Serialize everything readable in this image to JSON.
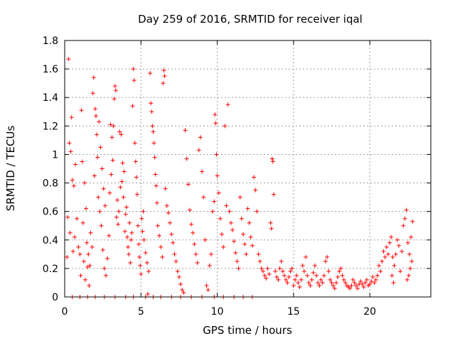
{
  "chart_data": {
    "type": "scatter",
    "title": "Day 259 of 2016, SRMTID for receiver iqal",
    "xlabel": "GPS time / hours",
    "ylabel": "SRMTID / TECUs",
    "xlim": [
      0,
      24
    ],
    "ylim": [
      0,
      1.8
    ],
    "xticks": [
      0,
      5,
      10,
      15,
      20
    ],
    "xtick_labels": [
      "0",
      "5",
      "10",
      "15",
      "20"
    ],
    "yticks": [
      0,
      0.2,
      0.4,
      0.6,
      0.8,
      1.0,
      1.2,
      1.4,
      1.6,
      1.8
    ],
    "ytick_labels": [
      "0",
      "0.2",
      "0.4",
      "0.6",
      "0.8",
      "1",
      "1.2",
      "1.4",
      "1.6",
      "1.8"
    ],
    "grid": true,
    "marker": "+",
    "color": "#ff0000",
    "series": [
      {
        "name": "SRMTID",
        "points": [
          [
            0.25,
            1.67
          ],
          [
            0.45,
            1.26
          ],
          [
            0.3,
            1.08
          ],
          [
            0.4,
            1.02
          ],
          [
            0.5,
            0.82
          ],
          [
            0.2,
            0.56
          ],
          [
            0.35,
            0.45
          ],
          [
            0.6,
            0.78
          ],
          [
            0.7,
            0.93
          ],
          [
            0.8,
            0.55
          ],
          [
            0.9,
            0.35
          ],
          [
            1.0,
            0.3
          ],
          [
            1.05,
            0.15
          ],
          [
            1.1,
            1.31
          ],
          [
            1.2,
            0.52
          ],
          [
            1.3,
            0.8
          ],
          [
            1.4,
            0.62
          ],
          [
            1.5,
            0.21
          ],
          [
            1.6,
            0.08
          ],
          [
            1.7,
            0.45
          ],
          [
            1.8,
            0.35
          ],
          [
            0.15,
            0.28
          ],
          [
            0.55,
            0.32
          ],
          [
            0.65,
            0.42
          ],
          [
            1.15,
            0.95
          ],
          [
            1.25,
            0.25
          ],
          [
            1.35,
            0.12
          ],
          [
            1.45,
            0.38
          ],
          [
            1.55,
            0.3
          ],
          [
            1.65,
            0.22
          ],
          [
            1.9,
            1.54
          ],
          [
            1.85,
            1.43
          ],
          [
            2.0,
            1.32
          ],
          [
            2.05,
            1.27
          ],
          [
            2.1,
            1.14
          ],
          [
            1.95,
            0.85
          ],
          [
            2.15,
            0.98
          ],
          [
            2.2,
            0.7
          ],
          [
            2.3,
            0.6
          ],
          [
            2.4,
            0.5
          ],
          [
            2.5,
            0.33
          ],
          [
            2.6,
            0.2
          ],
          [
            2.7,
            0.15
          ],
          [
            2.8,
            0.27
          ],
          [
            2.9,
            0.43
          ],
          [
            2.25,
            1.23
          ],
          [
            2.35,
            1.05
          ],
          [
            2.45,
            0.9
          ],
          [
            2.55,
            0.76
          ],
          [
            2.65,
            0.64
          ],
          [
            3.0,
            1.21
          ],
          [
            3.1,
            1.12
          ],
          [
            3.2,
            1.2
          ],
          [
            3.3,
            1.48
          ],
          [
            3.35,
            1.45
          ],
          [
            3.25,
            1.39
          ],
          [
            3.15,
            0.96
          ],
          [
            3.05,
            0.86
          ],
          [
            2.95,
            0.73
          ],
          [
            3.4,
            0.56
          ],
          [
            3.5,
            0.51
          ],
          [
            3.6,
            1.16
          ],
          [
            3.7,
            1.14
          ],
          [
            3.8,
            0.94
          ],
          [
            3.9,
            0.88
          ],
          [
            4.0,
            0.58
          ],
          [
            4.1,
            0.42
          ],
          [
            4.15,
            0.35
          ],
          [
            4.2,
            0.3
          ],
          [
            4.3,
            0.24
          ],
          [
            3.45,
            0.68
          ],
          [
            3.55,
            0.6
          ],
          [
            3.65,
            0.77
          ],
          [
            3.75,
            0.81
          ],
          [
            3.85,
            0.7
          ],
          [
            3.95,
            0.46
          ],
          [
            4.05,
            0.63
          ],
          [
            4.25,
            0.52
          ],
          [
            4.35,
            0.4
          ],
          [
            4.4,
            0.45
          ],
          [
            4.5,
            1.6
          ],
          [
            4.55,
            1.52
          ],
          [
            4.45,
            1.34
          ],
          [
            4.6,
            1.08
          ],
          [
            4.65,
            0.95
          ],
          [
            4.7,
            0.84
          ],
          [
            4.75,
            0.72
          ],
          [
            4.8,
            0.5
          ],
          [
            4.85,
            0.37
          ],
          [
            4.9,
            0.28
          ],
          [
            4.95,
            0.22
          ],
          [
            5.0,
            0.16
          ],
          [
            5.05,
            0.55
          ],
          [
            5.1,
            0.46
          ],
          [
            5.15,
            0.6
          ],
          [
            5.2,
            0.4
          ],
          [
            5.3,
            0.31
          ],
          [
            5.4,
            0.24
          ],
          [
            5.5,
            0.18
          ],
          [
            5.45,
            0.02
          ],
          [
            5.6,
            1.57
          ],
          [
            5.65,
            1.36
          ],
          [
            5.7,
            1.3
          ],
          [
            5.75,
            1.2
          ],
          [
            5.8,
            1.16
          ],
          [
            5.85,
            1.08
          ],
          [
            5.9,
            0.98
          ],
          [
            5.95,
            0.86
          ],
          [
            6.0,
            0.78
          ],
          [
            6.05,
            0.66
          ],
          [
            6.1,
            0.5
          ],
          [
            6.2,
            0.43
          ],
          [
            6.3,
            0.35
          ],
          [
            6.4,
            0.28
          ],
          [
            6.5,
            1.59
          ],
          [
            6.55,
            1.55
          ],
          [
            6.45,
            1.5
          ],
          [
            6.6,
            0.76
          ],
          [
            6.7,
            0.64
          ],
          [
            6.8,
            0.59
          ],
          [
            6.9,
            0.52
          ],
          [
            7.0,
            0.44
          ],
          [
            7.1,
            0.38
          ],
          [
            7.2,
            0.3
          ],
          [
            7.3,
            0.25
          ],
          [
            7.4,
            0.18
          ],
          [
            7.5,
            0.14
          ],
          [
            7.6,
            0.09
          ],
          [
            7.7,
            0.05
          ],
          [
            7.8,
            0.03
          ],
          [
            7.9,
            1.17
          ],
          [
            8.0,
            0.97
          ],
          [
            8.1,
            0.79
          ],
          [
            8.2,
            0.61
          ],
          [
            8.3,
            0.51
          ],
          [
            8.4,
            0.45
          ],
          [
            8.5,
            0.37
          ],
          [
            8.6,
            0.3
          ],
          [
            8.7,
            0.24
          ],
          [
            8.8,
            1.03
          ],
          [
            8.9,
            1.12
          ],
          [
            9.0,
            0.88
          ],
          [
            9.1,
            0.7
          ],
          [
            9.2,
            0.4
          ],
          [
            9.3,
            0.08
          ],
          [
            9.4,
            0.05
          ],
          [
            9.5,
            0.22
          ],
          [
            9.6,
            0.3
          ],
          [
            9.7,
            0.6
          ],
          [
            9.8,
            0.67
          ],
          [
            9.85,
            1.28
          ],
          [
            9.9,
            1.22
          ],
          [
            9.95,
            1.0
          ],
          [
            10.0,
            0.85
          ],
          [
            10.1,
            0.73
          ],
          [
            10.2,
            0.55
          ],
          [
            10.3,
            0.44
          ],
          [
            10.4,
            0.35
          ],
          [
            10.5,
            1.2
          ],
          [
            10.6,
            0.64
          ],
          [
            10.7,
            1.35
          ],
          [
            10.8,
            0.6
          ],
          [
            10.9,
            0.52
          ],
          [
            11.0,
            0.47
          ],
          [
            11.1,
            0.39
          ],
          [
            11.2,
            0.31
          ],
          [
            11.3,
            0.25
          ],
          [
            11.4,
            0.2
          ],
          [
            11.5,
            0.7
          ],
          [
            11.6,
            0.55
          ],
          [
            11.7,
            0.44
          ],
          [
            11.8,
            0.37
          ],
          [
            11.9,
            0.3
          ],
          [
            12.0,
            0.62
          ],
          [
            12.1,
            0.52
          ],
          [
            12.2,
            0.42
          ],
          [
            12.3,
            0.36
          ],
          [
            12.4,
            0.84
          ],
          [
            12.5,
            0.75
          ],
          [
            12.6,
            0.6
          ],
          [
            12.7,
            0.3
          ],
          [
            12.8,
            0.25
          ],
          [
            12.9,
            0.2
          ],
          [
            13.0,
            0.18
          ],
          [
            13.1,
            0.15
          ],
          [
            13.2,
            0.13
          ],
          [
            13.3,
            0.2
          ],
          [
            13.4,
            0.16
          ],
          [
            13.5,
            0.52
          ],
          [
            13.55,
            0.48
          ],
          [
            13.6,
            0.97
          ],
          [
            13.65,
            0.95
          ],
          [
            13.7,
            0.72
          ],
          [
            13.8,
            0.18
          ],
          [
            13.9,
            0.14
          ],
          [
            14.0,
            0.12
          ],
          [
            14.1,
            0.2
          ],
          [
            14.2,
            0.25
          ],
          [
            14.3,
            0.18
          ],
          [
            14.4,
            0.15
          ],
          [
            14.5,
            0.12
          ],
          [
            14.6,
            0.1
          ],
          [
            14.7,
            0.14
          ],
          [
            14.8,
            0.18
          ],
          [
            14.9,
            0.2
          ],
          [
            15.0,
            0.08
          ],
          [
            15.1,
            0.12
          ],
          [
            15.2,
            0.15
          ],
          [
            15.3,
            0.1
          ],
          [
            15.4,
            0.07
          ],
          [
            15.5,
            0.12
          ],
          [
            15.6,
            0.22
          ],
          [
            15.7,
            0.18
          ],
          [
            15.8,
            0.28
          ],
          [
            15.9,
            0.15
          ],
          [
            16.0,
            0.1
          ],
          [
            16.1,
            0.08
          ],
          [
            16.2,
            0.12
          ],
          [
            16.3,
            0.17
          ],
          [
            16.4,
            0.22
          ],
          [
            16.5,
            0.15
          ],
          [
            16.6,
            0.1
          ],
          [
            16.7,
            0.08
          ],
          [
            16.8,
            0.12
          ],
          [
            16.9,
            0.1
          ],
          [
            17.0,
            0.15
          ],
          [
            17.1,
            0.25
          ],
          [
            17.2,
            0.28
          ],
          [
            17.3,
            0.18
          ],
          [
            17.4,
            0.12
          ],
          [
            17.5,
            0.1
          ],
          [
            17.6,
            0.08
          ],
          [
            17.7,
            0.06
          ],
          [
            17.8,
            0.1
          ],
          [
            17.9,
            0.14
          ],
          [
            18.0,
            0.18
          ],
          [
            18.1,
            0.2
          ],
          [
            18.2,
            0.15
          ],
          [
            18.3,
            0.12
          ],
          [
            18.4,
            0.1
          ],
          [
            18.5,
            0.08
          ],
          [
            18.6,
            0.07
          ],
          [
            18.7,
            0.06
          ],
          [
            18.8,
            0.08
          ],
          [
            18.9,
            0.12
          ],
          [
            19.0,
            0.1
          ],
          [
            19.1,
            0.08
          ],
          [
            19.2,
            0.06
          ],
          [
            19.3,
            0.09
          ],
          [
            19.4,
            0.11
          ],
          [
            19.5,
            0.09
          ],
          [
            19.6,
            0.07
          ],
          [
            19.7,
            0.1
          ],
          [
            19.8,
            0.12
          ],
          [
            19.9,
            0.08
          ],
          [
            20.0,
            0.09
          ],
          [
            20.1,
            0.11
          ],
          [
            20.2,
            0.14
          ],
          [
            20.3,
            0.1
          ],
          [
            20.4,
            0.12
          ],
          [
            20.5,
            0.15
          ],
          [
            20.6,
            0.22
          ],
          [
            20.7,
            0.18
          ],
          [
            20.8,
            0.25
          ],
          [
            20.9,
            0.32
          ],
          [
            21.0,
            0.28
          ],
          [
            21.1,
            0.35
          ],
          [
            21.2,
            0.3
          ],
          [
            21.3,
            0.38
          ],
          [
            21.4,
            0.42
          ],
          [
            21.5,
            0.28
          ],
          [
            21.6,
            0.22
          ],
          [
            21.7,
            0.3
          ],
          [
            21.8,
            0.4
          ],
          [
            21.9,
            0.36
          ],
          [
            22.0,
            0.18
          ],
          [
            22.1,
            0.32
          ],
          [
            22.2,
            0.5
          ],
          [
            22.3,
            0.55
          ],
          [
            22.4,
            0.61
          ],
          [
            22.5,
            0.38
          ],
          [
            22.6,
            0.3
          ],
          [
            22.7,
            0.42
          ],
          [
            22.8,
            0.53
          ],
          [
            22.75,
            0.25
          ],
          [
            22.65,
            0.2
          ],
          [
            22.55,
            0.15
          ],
          [
            22.45,
            0.12
          ],
          [
            21.45,
            0.15
          ],
          [
            21.55,
            0.1
          ],
          [
            0.5,
            0.0
          ],
          [
            1.0,
            0.0
          ],
          [
            1.5,
            0.0
          ],
          [
            2.0,
            0.0
          ],
          [
            2.6,
            0.0
          ],
          [
            3.3,
            0.0
          ],
          [
            4.0,
            0.0
          ],
          [
            4.5,
            0.0
          ],
          [
            5.3,
            0.0
          ],
          [
            5.8,
            0.0
          ],
          [
            6.3,
            0.0
          ],
          [
            7.0,
            0.0
          ],
          [
            7.6,
            0.0
          ],
          [
            8.3,
            0.0
          ],
          [
            9.0,
            0.0
          ],
          [
            9.8,
            0.0
          ],
          [
            10.4,
            0.0
          ],
          [
            11.1,
            0.0
          ],
          [
            11.7,
            0.0
          ],
          [
            12.3,
            0.0
          ]
        ]
      }
    ]
  }
}
